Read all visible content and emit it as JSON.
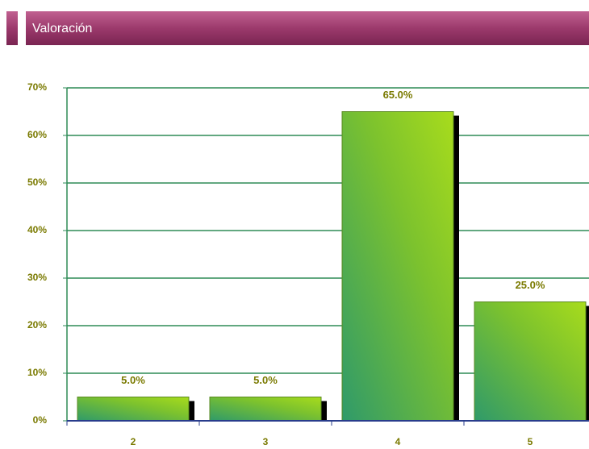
{
  "chart_data": {
    "type": "bar",
    "title": "Valoración",
    "categories": [
      "2",
      "3",
      "4",
      "5"
    ],
    "values": [
      5,
      5,
      65,
      25
    ],
    "value_labels": [
      "5.0%",
      "5.0%",
      "65.0%",
      "25.0%"
    ],
    "color": "#8ccf2a",
    "ylim": [
      0,
      70
    ],
    "yticks": [
      {
        "value": 0,
        "label": "0%"
      },
      {
        "value": 10,
        "label": "10%"
      },
      {
        "value": 20,
        "label": "20%"
      },
      {
        "value": 30,
        "label": "30%"
      },
      {
        "value": 40,
        "label": "40%"
      },
      {
        "value": 50,
        "label": "50%"
      },
      {
        "value": 60,
        "label": "60%"
      },
      {
        "value": 70,
        "label": "70%"
      }
    ],
    "grid": true
  }
}
